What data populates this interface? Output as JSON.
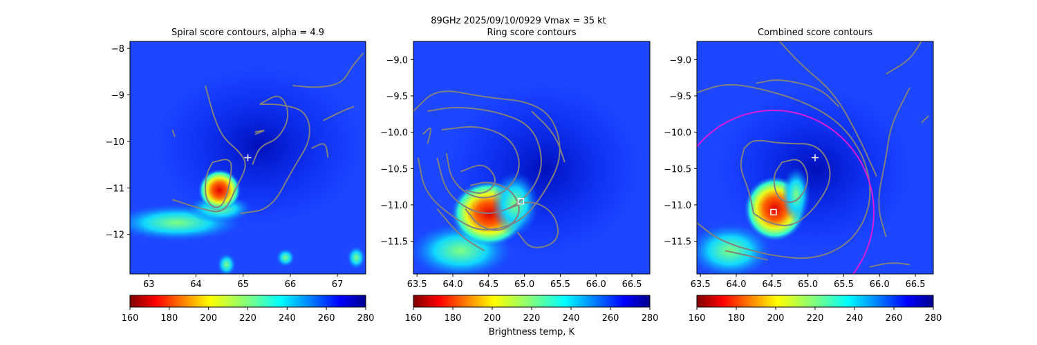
{
  "figure": {
    "suptitle": "89GHz  2025/09/10/0929    Vmax = 35 kt",
    "colorbar_label": "Brightness temp, K"
  },
  "colors": {
    "contour": "#808080",
    "circle": "#d81bd8",
    "marker": "#ffffff"
  },
  "chart_data": [
    {
      "type": "heatmap",
      "title": "Spiral score contours, alpha =  4.9",
      "xlim": [
        62.6,
        67.6
      ],
      "ylim": [
        -12.85,
        -7.85
      ],
      "xticks": [
        63,
        64,
        65,
        66,
        67
      ],
      "xtick_labels": [
        "63",
        "64",
        "65",
        "66",
        "67"
      ],
      "yticks": [
        -8,
        -9,
        -10,
        -11,
        -12
      ],
      "ytick_labels": [
        "−8",
        "−9",
        "−10",
        "−11",
        "−12"
      ],
      "center_marker": {
        "shape": "plus",
        "x": 65.1,
        "y": -10.35
      },
      "colorbar": {
        "min": 160,
        "max": 280,
        "ticks": [
          160,
          180,
          200,
          220,
          240,
          260,
          280
        ],
        "colormap": "jet_r"
      }
    },
    {
      "type": "heatmap",
      "title": "Ring score contours",
      "xlim": [
        63.45,
        66.75
      ],
      "ylim": [
        -11.95,
        -8.75
      ],
      "xticks": [
        63.5,
        64.0,
        64.5,
        65.0,
        65.5,
        66.0,
        66.5
      ],
      "xtick_labels": [
        "63.5",
        "64.0",
        "64.5",
        "65.0",
        "65.5",
        "66.0",
        "66.5"
      ],
      "yticks": [
        -9.0,
        -9.5,
        -10.0,
        -10.5,
        -11.0,
        -11.5
      ],
      "ytick_labels": [
        "−9.0",
        "−9.5",
        "−10.0",
        "−10.5",
        "−11.0",
        "−11.5"
      ],
      "center_marker": {
        "shape": "square",
        "x": 64.95,
        "y": -10.95
      },
      "colorbar": {
        "min": 160,
        "max": 280,
        "ticks": [
          160,
          180,
          200,
          220,
          240,
          260,
          280
        ],
        "colormap": "jet_r"
      }
    },
    {
      "type": "heatmap",
      "title": "Combined score contours",
      "xlim": [
        63.45,
        66.75
      ],
      "ylim": [
        -11.95,
        -8.75
      ],
      "xticks": [
        63.5,
        64.0,
        64.5,
        65.0,
        65.5,
        66.0,
        66.5
      ],
      "xtick_labels": [
        "63.5",
        "64.0",
        "64.5",
        "65.0",
        "65.5",
        "66.0",
        "66.5"
      ],
      "yticks": [
        -9.0,
        -9.5,
        -10.0,
        -10.5,
        -11.0,
        -11.5
      ],
      "ytick_labels": [
        "−9.0",
        "−9.5",
        "−10.0",
        "−10.5",
        "−11.0",
        "−11.5"
      ],
      "center_marker": {
        "shape": "square",
        "x": 64.52,
        "y": -11.1
      },
      "plus_marker": {
        "x": 65.1,
        "y": -10.35
      },
      "circle": {
        "cx": 64.52,
        "cy": -11.1,
        "r": 1.4
      },
      "colorbar": {
        "min": 160,
        "max": 280,
        "ticks": [
          160,
          180,
          200,
          220,
          240,
          260,
          280
        ],
        "colormap": "jet_r"
      }
    }
  ]
}
